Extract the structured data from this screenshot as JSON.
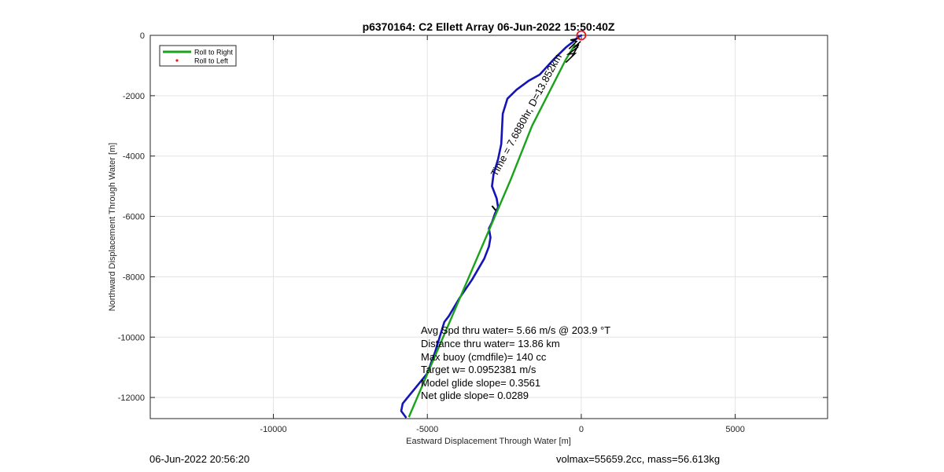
{
  "chart_data": {
    "type": "line",
    "title": "p6370164: C2 Ellett Array 06-Jun-2022 15:50:40Z",
    "xlabel": "Eastward Displacement Through Water [m]",
    "ylabel": "Northward Displacement Through Water [m]",
    "xlim": [
      -14000,
      8000
    ],
    "ylim": [
      -12700,
      0
    ],
    "xticks": [
      -10000,
      -5000,
      0,
      5000
    ],
    "yticks": [
      0,
      -2000,
      -4000,
      -6000,
      -8000,
      -10000,
      -12000
    ],
    "xtick_labels": [
      "-10000",
      "-5000",
      "0",
      "5000"
    ],
    "ytick_labels": [
      "0",
      "-2000",
      "-4000",
      "-6000",
      "-8000",
      "-10000",
      "-12000"
    ],
    "grid": true,
    "legend": {
      "location": "top-left",
      "entries": [
        "Roll to Right",
        "Roll to Left"
      ]
    },
    "series": [
      {
        "name": "Roll to Right",
        "style": "line",
        "color": "#1aa31a",
        "x": [
          -5600,
          -2300,
          -1600,
          -500,
          -200
        ],
        "y": [
          -12650,
          -4800,
          -3000,
          -800,
          -300
        ]
      },
      {
        "name": "Roll to Left",
        "style": "marker",
        "color": "#e8141e",
        "x": [],
        "y": []
      },
      {
        "style": "track",
        "color": "#1414b8",
        "x": [
          -5700,
          -5850,
          -5800,
          -5600,
          -5400,
          -5000,
          -4750,
          -4600,
          -4450,
          -4300,
          -3950,
          -3550,
          -3150,
          -3000,
          -2950,
          -3000,
          -2900,
          -2800,
          -2700,
          -2750,
          -2900,
          -2850,
          -2700,
          -2600,
          -2550,
          -2400,
          -2100,
          -1700,
          -1350,
          -900,
          -500,
          -250,
          -100,
          0
        ],
        "y": [
          -12650,
          -12450,
          -12200,
          -11950,
          -11700,
          -11200,
          -10500,
          -10000,
          -9500,
          -9300,
          -8700,
          -8100,
          -7400,
          -7000,
          -6700,
          -6400,
          -6200,
          -5900,
          -5700,
          -5400,
          -5000,
          -4600,
          -4100,
          -3600,
          -2600,
          -2100,
          -1800,
          -1500,
          -1300,
          -800,
          -400,
          -200,
          -50,
          0
        ]
      }
    ],
    "start_marker": {
      "x": 0,
      "y": 0,
      "color": "#e8141e"
    },
    "annotations": {
      "segment_label": "Time = 7.6880hr, D=13.852km",
      "stats": [
        "Avg Spd thru water=  5.66 m/s @ 203.9 °T",
        "Distance thru water= 13.86 km",
        "Max buoy (cmdfile)= 140 cc",
        "Target w= 0.0952381 m/s",
        "Model glide slope= 0.3561",
        "Net glide slope= 0.0289"
      ]
    }
  },
  "footer": {
    "left": "06-Jun-2022 20:56:20",
    "right": "volmax=55659.2cc, mass=56.613kg"
  }
}
